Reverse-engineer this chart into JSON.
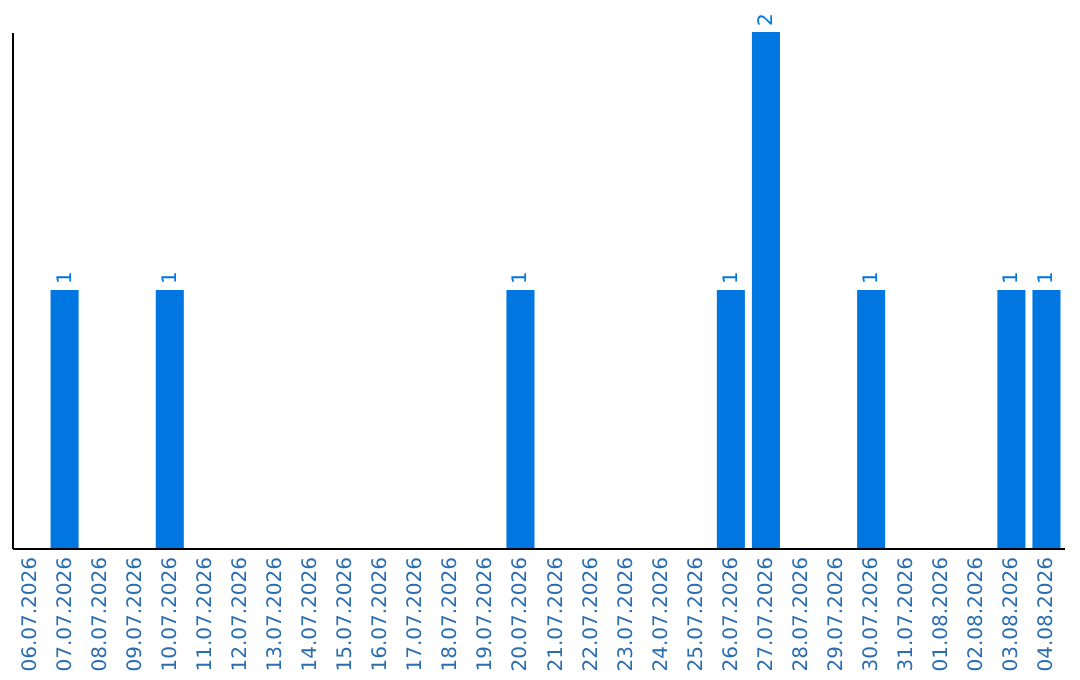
{
  "chart_data": {
    "type": "bar",
    "categories": [
      "06.07.2026",
      "07.07.2026",
      "08.07.2026",
      "09.07.2026",
      "10.07.2026",
      "11.07.2026",
      "12.07.2026",
      "13.07.2026",
      "14.07.2026",
      "15.07.2026",
      "16.07.2026",
      "17.07.2026",
      "18.07.2026",
      "19.07.2026",
      "20.07.2026",
      "21.07.2026",
      "22.07.2026",
      "23.07.2026",
      "24.07.2026",
      "25.07.2026",
      "26.07.2026",
      "27.07.2026",
      "28.07.2026",
      "29.07.2026",
      "30.07.2026",
      "31.07.2026",
      "01.08.2026",
      "02.08.2026",
      "03.08.2026",
      "04.08.2026"
    ],
    "values": [
      0,
      1,
      0,
      0,
      1,
      0,
      0,
      0,
      0,
      0,
      0,
      0,
      0,
      0,
      1,
      0,
      0,
      0,
      0,
      0,
      1,
      2,
      0,
      0,
      1,
      0,
      0,
      0,
      1,
      1
    ],
    "value_labels": [
      null,
      "1",
      null,
      null,
      "1",
      null,
      null,
      null,
      null,
      null,
      null,
      null,
      null,
      null,
      "1",
      null,
      null,
      null,
      null,
      null,
      "1",
      "2",
      null,
      null,
      "1",
      null,
      null,
      null,
      "1",
      "1"
    ],
    "color": "#0077e0",
    "tick_labels": "x",
    "grid": false
  }
}
